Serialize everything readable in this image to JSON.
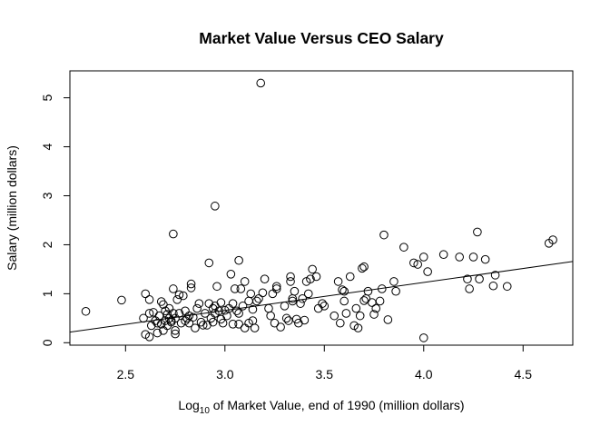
{
  "chart_data": {
    "type": "scatter",
    "title": "Market Value Versus CEO Salary",
    "xlabel": {
      "prefix": "Log",
      "subscript": "10",
      "suffix": " of Market Value, end of 1990 (million dollars)"
    },
    "ylabel": "Salary (million dollars)",
    "xlim": [
      2.22,
      4.75
    ],
    "ylim": [
      -0.05,
      5.55
    ],
    "x_ticks": [
      2.5,
      3.0,
      3.5,
      4.0,
      4.5
    ],
    "x_tick_labels": [
      "2.5",
      "3.0",
      "3.5",
      "4.0",
      "4.5"
    ],
    "y_ticks": [
      0,
      1,
      2,
      3,
      4,
      5
    ],
    "y_tick_labels": [
      "0",
      "1",
      "2",
      "3",
      "4",
      "5"
    ],
    "grid": false,
    "regression_line": {
      "intercept": -1.05,
      "slope": 0.57
    },
    "points": [
      [
        2.3,
        0.64
      ],
      [
        2.48,
        0.87
      ],
      [
        2.59,
        0.5
      ],
      [
        2.6,
        1.0
      ],
      [
        2.6,
        0.17
      ],
      [
        2.62,
        0.88
      ],
      [
        2.62,
        0.12
      ],
      [
        2.62,
        0.6
      ],
      [
        2.63,
        0.35
      ],
      [
        2.64,
        0.62
      ],
      [
        2.65,
        0.45
      ],
      [
        2.66,
        0.4
      ],
      [
        2.66,
        0.2
      ],
      [
        2.67,
        0.55
      ],
      [
        2.68,
        0.84
      ],
      [
        2.68,
        0.38
      ],
      [
        2.69,
        0.78
      ],
      [
        2.69,
        0.25
      ],
      [
        2.7,
        0.65
      ],
      [
        2.7,
        0.45
      ],
      [
        2.71,
        0.35
      ],
      [
        2.71,
        0.58
      ],
      [
        2.72,
        0.5
      ],
      [
        2.72,
        0.7
      ],
      [
        2.73,
        0.42
      ],
      [
        2.73,
        0.45
      ],
      [
        2.74,
        2.22
      ],
      [
        2.74,
        0.6
      ],
      [
        2.74,
        1.1
      ],
      [
        2.75,
        0.5
      ],
      [
        2.75,
        0.25
      ],
      [
        2.75,
        0.18
      ],
      [
        2.76,
        0.88
      ],
      [
        2.77,
        0.98
      ],
      [
        2.77,
        0.6
      ],
      [
        2.78,
        0.4
      ],
      [
        2.79,
        0.96
      ],
      [
        2.8,
        0.65
      ],
      [
        2.8,
        0.45
      ],
      [
        2.81,
        0.5
      ],
      [
        2.82,
        0.4
      ],
      [
        2.82,
        0.55
      ],
      [
        2.83,
        1.2
      ],
      [
        2.83,
        1.12
      ],
      [
        2.84,
        0.52
      ],
      [
        2.85,
        0.3
      ],
      [
        2.86,
        0.7
      ],
      [
        2.87,
        0.8
      ],
      [
        2.88,
        0.42
      ],
      [
        2.89,
        0.36
      ],
      [
        2.9,
        0.6
      ],
      [
        2.91,
        0.36
      ],
      [
        2.92,
        1.63
      ],
      [
        2.92,
        0.8
      ],
      [
        2.93,
        0.5
      ],
      [
        2.94,
        0.7
      ],
      [
        2.94,
        0.42
      ],
      [
        2.95,
        2.79
      ],
      [
        2.95,
        0.75
      ],
      [
        2.95,
        0.6
      ],
      [
        2.96,
        1.15
      ],
      [
        2.97,
        0.65
      ],
      [
        2.98,
        0.82
      ],
      [
        2.98,
        0.48
      ],
      [
        2.99,
        0.4
      ],
      [
        3.0,
        0.66
      ],
      [
        3.01,
        0.55
      ],
      [
        3.02,
        0.7
      ],
      [
        3.03,
        1.4
      ],
      [
        3.04,
        0.38
      ],
      [
        3.04,
        0.8
      ],
      [
        3.05,
        1.1
      ],
      [
        3.06,
        0.65
      ],
      [
        3.07,
        1.68
      ],
      [
        3.07,
        0.38
      ],
      [
        3.07,
        0.6
      ],
      [
        3.08,
        1.1
      ],
      [
        3.09,
        0.75
      ],
      [
        3.1,
        0.3
      ],
      [
        3.1,
        1.25
      ],
      [
        3.12,
        0.85
      ],
      [
        3.12,
        0.4
      ],
      [
        3.13,
        1.0
      ],
      [
        3.14,
        0.45
      ],
      [
        3.14,
        0.68
      ],
      [
        3.15,
        0.3
      ],
      [
        3.16,
        0.85
      ],
      [
        3.17,
        0.9
      ],
      [
        3.18,
        5.3
      ],
      [
        3.19,
        1.02
      ],
      [
        3.2,
        1.3
      ],
      [
        3.22,
        0.7
      ],
      [
        3.23,
        0.55
      ],
      [
        3.24,
        1.0
      ],
      [
        3.25,
        0.4
      ],
      [
        3.26,
        1.15
      ],
      [
        3.26,
        1.1
      ],
      [
        3.28,
        0.32
      ],
      [
        3.3,
        0.75
      ],
      [
        3.31,
        0.5
      ],
      [
        3.32,
        0.45
      ],
      [
        3.33,
        1.35
      ],
      [
        3.33,
        1.25
      ],
      [
        3.34,
        0.85
      ],
      [
        3.34,
        0.9
      ],
      [
        3.35,
        1.05
      ],
      [
        3.36,
        0.48
      ],
      [
        3.37,
        0.4
      ],
      [
        3.38,
        0.8
      ],
      [
        3.39,
        0.9
      ],
      [
        3.4,
        0.46
      ],
      [
        3.41,
        1.25
      ],
      [
        3.42,
        1.0
      ],
      [
        3.43,
        1.3
      ],
      [
        3.44,
        1.5
      ],
      [
        3.46,
        1.35
      ],
      [
        3.47,
        0.7
      ],
      [
        3.49,
        0.8
      ],
      [
        3.5,
        0.75
      ],
      [
        3.55,
        0.55
      ],
      [
        3.57,
        1.25
      ],
      [
        3.58,
        0.4
      ],
      [
        3.59,
        1.08
      ],
      [
        3.6,
        0.85
      ],
      [
        3.6,
        1.05
      ],
      [
        3.61,
        0.6
      ],
      [
        3.63,
        1.35
      ],
      [
        3.65,
        0.35
      ],
      [
        3.66,
        0.7
      ],
      [
        3.67,
        0.3
      ],
      [
        3.68,
        0.55
      ],
      [
        3.69,
        1.52
      ],
      [
        3.7,
        1.55
      ],
      [
        3.7,
        0.86
      ],
      [
        3.71,
        0.9
      ],
      [
        3.72,
        1.05
      ],
      [
        3.74,
        0.82
      ],
      [
        3.75,
        0.58
      ],
      [
        3.76,
        0.7
      ],
      [
        3.78,
        0.85
      ],
      [
        3.79,
        1.1
      ],
      [
        3.8,
        2.2
      ],
      [
        3.82,
        0.47
      ],
      [
        3.85,
        1.25
      ],
      [
        3.86,
        1.05
      ],
      [
        3.9,
        1.95
      ],
      [
        3.95,
        1.63
      ],
      [
        3.97,
        1.6
      ],
      [
        4.0,
        1.75
      ],
      [
        4.0,
        0.1
      ],
      [
        4.02,
        1.45
      ],
      [
        4.1,
        1.8
      ],
      [
        4.18,
        1.75
      ],
      [
        4.22,
        1.3
      ],
      [
        4.23,
        1.1
      ],
      [
        4.25,
        1.75
      ],
      [
        4.27,
        2.26
      ],
      [
        4.28,
        1.3
      ],
      [
        4.31,
        1.7
      ],
      [
        4.35,
        1.16
      ],
      [
        4.36,
        1.38
      ],
      [
        4.42,
        1.15
      ],
      [
        4.63,
        2.03
      ],
      [
        4.65,
        2.1
      ]
    ]
  }
}
